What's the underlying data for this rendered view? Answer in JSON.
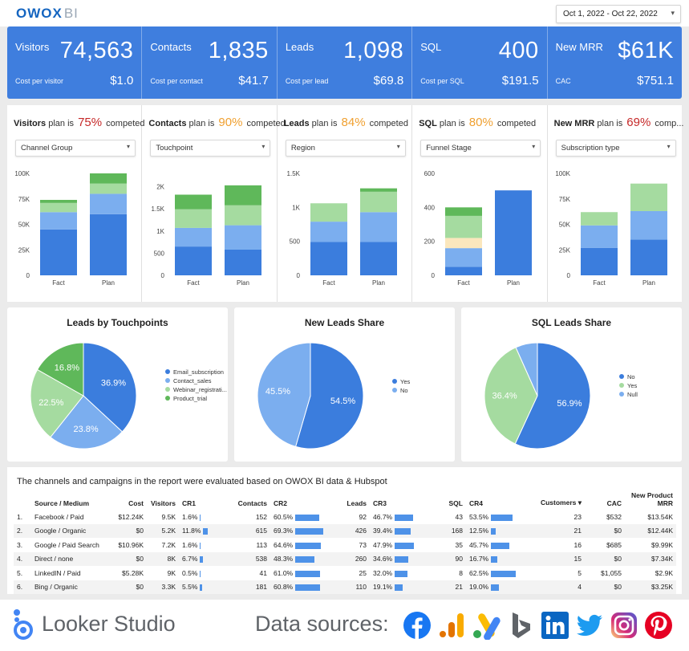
{
  "header": {
    "logo_main": "OWOX",
    "logo_sub": "BI",
    "date_range": "Oct 1, 2022 - Oct 22, 2022"
  },
  "kpis": [
    {
      "label": "Visitors",
      "value": "74,563",
      "sublabel": "Cost per visitor",
      "subvalue": "$1.0"
    },
    {
      "label": "Contacts",
      "value": "1,835",
      "sublabel": "Cost per contact",
      "subvalue": "$41.7"
    },
    {
      "label": "Leads",
      "value": "1,098",
      "sublabel": "Cost per lead",
      "subvalue": "$69.8"
    },
    {
      "label": "SQL",
      "value": "400",
      "sublabel": "Cost per SQL",
      "subvalue": "$191.5"
    },
    {
      "label": "New MRR",
      "value": "$61K",
      "sublabel": "CAC",
      "subvalue": "$751.1"
    }
  ],
  "plans": [
    {
      "metric": "Visitors",
      "mid": "plan is",
      "pct": "75%",
      "tail": "competed",
      "pct_color": "#c62828",
      "dropdown": "Channel Group"
    },
    {
      "metric": "Contacts",
      "mid": "plan is",
      "pct": "90%",
      "tail": "competed",
      "pct_color": "#f0a030",
      "dropdown": "Touchpoint"
    },
    {
      "metric": "Leads",
      "mid": "plan is",
      "pct": "84%",
      "tail": "competed",
      "pct_color": "#f0a030",
      "dropdown": "Region"
    },
    {
      "metric": "SQL",
      "mid": "plan is",
      "pct": "80%",
      "tail": "competed",
      "pct_color": "#f0a030",
      "dropdown": "Funnel Stage"
    },
    {
      "metric": "New MRR",
      "mid": "plan is",
      "pct": "69%",
      "tail": "comp...",
      "pct_color": "#c62828",
      "dropdown": "Subscription type"
    }
  ],
  "chart_data": [
    {
      "type": "bar",
      "title": "Visitors plan",
      "stacked": true,
      "categories": [
        "Fact",
        "Plan"
      ],
      "yticks": [
        "0",
        "25K",
        "50K",
        "75K",
        "100K"
      ],
      "ylim": [
        0,
        100000
      ],
      "series": [
        {
          "name": "s1",
          "color": "#3b7ddd",
          "values": [
            45000,
            60000
          ]
        },
        {
          "name": "s2",
          "color": "#7baeef",
          "values": [
            17000,
            20000
          ]
        },
        {
          "name": "s3",
          "color": "#a5dba0",
          "values": [
            9000,
            10000
          ]
        },
        {
          "name": "s4",
          "color": "#5fb85a",
          "values": [
            3000,
            10000
          ]
        }
      ]
    },
    {
      "type": "bar",
      "title": "Contacts plan",
      "stacked": true,
      "categories": [
        "Fact",
        "Plan"
      ],
      "yticks": [
        "0",
        "500",
        "1K",
        "1.5K",
        "2K"
      ],
      "ylim": [
        0,
        2300
      ],
      "series": [
        {
          "name": "s1",
          "color": "#3b7ddd",
          "values": [
            650,
            580
          ]
        },
        {
          "name": "s2",
          "color": "#7baeef",
          "values": [
            420,
            550
          ]
        },
        {
          "name": "s3",
          "color": "#a5dba0",
          "values": [
            420,
            450
          ]
        },
        {
          "name": "s4",
          "color": "#5fb85a",
          "values": [
            330,
            450
          ]
        }
      ]
    },
    {
      "type": "bar",
      "title": "Leads plan",
      "stacked": true,
      "categories": [
        "Fact",
        "Plan"
      ],
      "yticks": [
        "0",
        "500",
        "1K",
        "1.5K"
      ],
      "ylim": [
        0,
        1500
      ],
      "series": [
        {
          "name": "s1",
          "color": "#3b7ddd",
          "values": [
            490,
            490
          ]
        },
        {
          "name": "s2",
          "color": "#7baeef",
          "values": [
            300,
            440
          ]
        },
        {
          "name": "s3",
          "color": "#a5dba0",
          "values": [
            270,
            300
          ]
        },
        {
          "name": "s4",
          "color": "#5fb85a",
          "values": [
            0,
            50
          ]
        }
      ]
    },
    {
      "type": "bar",
      "title": "SQL plan",
      "stacked": true,
      "categories": [
        "Fact",
        "Plan"
      ],
      "yticks": [
        "0",
        "200",
        "400",
        "600"
      ],
      "ylim": [
        0,
        600
      ],
      "series": [
        {
          "name": "s1",
          "color": "#3b7ddd",
          "values": [
            50,
            500
          ]
        },
        {
          "name": "s2",
          "color": "#7baeef",
          "values": [
            110,
            0
          ]
        },
        {
          "name": "s3",
          "color": "#fbe7bd",
          "values": [
            60,
            0
          ]
        },
        {
          "name": "s4",
          "color": "#a5dba0",
          "values": [
            130,
            0
          ]
        },
        {
          "name": "s5",
          "color": "#5fb85a",
          "values": [
            50,
            0
          ]
        }
      ]
    },
    {
      "type": "bar",
      "title": "New MRR plan",
      "stacked": true,
      "categories": [
        "Fact",
        "Plan"
      ],
      "yticks": [
        "0",
        "25K",
        "50K",
        "75K",
        "100K"
      ],
      "ylim": [
        0,
        100000
      ],
      "series": [
        {
          "name": "s1",
          "color": "#3b7ddd",
          "values": [
            27000,
            35000
          ]
        },
        {
          "name": "s2",
          "color": "#7baeef",
          "values": [
            22000,
            28000
          ]
        },
        {
          "name": "s3",
          "color": "#a5dba0",
          "values": [
            13000,
            27000
          ]
        }
      ]
    },
    {
      "type": "pie",
      "title": "Leads by Touchpoints",
      "slices": [
        {
          "label": "Email_subscription",
          "value": 36.9,
          "text": "36.9%",
          "color": "#3b7ddd"
        },
        {
          "label": "Contact_sales",
          "value": 23.8,
          "text": "23.8%",
          "color": "#7baeef"
        },
        {
          "label": "Webinar_registrati...",
          "value": 22.5,
          "text": "22.5%",
          "color": "#a5dba0"
        },
        {
          "label": "Product_trial",
          "value": 16.8,
          "text": "16.8%",
          "color": "#5fb85a"
        }
      ]
    },
    {
      "type": "pie",
      "title": "New Leads Share",
      "slices": [
        {
          "label": "Yes",
          "value": 54.5,
          "text": "54.5%",
          "color": "#3b7ddd"
        },
        {
          "label": "No",
          "value": 45.5,
          "text": "45.5%",
          "color": "#7baeef"
        }
      ]
    },
    {
      "type": "pie",
      "title": "SQL Leads Share",
      "slices": [
        {
          "label": "No",
          "value": 56.9,
          "text": "56.9%",
          "color": "#3b7ddd"
        },
        {
          "label": "Yes",
          "value": 36.4,
          "text": "36.4%",
          "color": "#a5dba0"
        },
        {
          "label": "Null",
          "value": 6.7,
          "text": "",
          "color": "#7baeef"
        }
      ]
    }
  ],
  "table": {
    "caption": "The channels and campaigns in the report were evaluated based on OWOX BI data & Hubspot",
    "headers": [
      "",
      "Source / Medium",
      "Cost",
      "Visitors",
      "CR1",
      "Contacts",
      "CR2",
      "Leads",
      "CR3",
      "SQL",
      "CR4",
      "Customers ▾",
      "CAC",
      "New Product MRR"
    ],
    "rows": [
      {
        "n": "1.",
        "src": "Facebook / Paid",
        "cost": "$12.24K",
        "visitors": "9.5K",
        "cr1": "1.6%",
        "cr1v": 1.6,
        "contacts": "152",
        "cr2": "60.5%",
        "cr2v": 60.5,
        "leads": "92",
        "cr3": "46.7%",
        "cr3v": 46.7,
        "sql": "43",
        "cr4": "53.5%",
        "cr4v": 53.5,
        "customers": "23",
        "cac": "$532",
        "mrr": "$13.54K"
      },
      {
        "n": "2.",
        "src": "Google / Organic",
        "cost": "$0",
        "visitors": "5.2K",
        "cr1": "11.8%",
        "cr1v": 11.8,
        "contacts": "615",
        "cr2": "69.3%",
        "cr2v": 69.3,
        "leads": "426",
        "cr3": "39.4%",
        "cr3v": 39.4,
        "sql": "168",
        "cr4": "12.5%",
        "cr4v": 12.5,
        "customers": "21",
        "cac": "$0",
        "mrr": "$12.44K"
      },
      {
        "n": "3.",
        "src": "Google / Paid Search",
        "cost": "$10.96K",
        "visitors": "7.2K",
        "cr1": "1.6%",
        "cr1v": 1.6,
        "contacts": "113",
        "cr2": "64.6%",
        "cr2v": 64.6,
        "leads": "73",
        "cr3": "47.9%",
        "cr3v": 47.9,
        "sql": "35",
        "cr4": "45.7%",
        "cr4v": 45.7,
        "customers": "16",
        "cac": "$685",
        "mrr": "$9.99K"
      },
      {
        "n": "4.",
        "src": "Direct / none",
        "cost": "$0",
        "visitors": "8K",
        "cr1": "6.7%",
        "cr1v": 6.7,
        "contacts": "538",
        "cr2": "48.3%",
        "cr2v": 48.3,
        "leads": "260",
        "cr3": "34.6%",
        "cr3v": 34.6,
        "sql": "90",
        "cr4": "16.7%",
        "cr4v": 16.7,
        "customers": "15",
        "cac": "$0",
        "mrr": "$7.34K"
      },
      {
        "n": "5.",
        "src": "LinkedIN / Paid",
        "cost": "$5.28K",
        "visitors": "9K",
        "cr1": "0.5%",
        "cr1v": 0.5,
        "contacts": "41",
        "cr2": "61.0%",
        "cr2v": 61.0,
        "leads": "25",
        "cr3": "32.0%",
        "cr3v": 32.0,
        "sql": "8",
        "cr4": "62.5%",
        "cr4v": 62.5,
        "customers": "5",
        "cac": "$1,055",
        "mrr": "$2.9K"
      },
      {
        "n": "6.",
        "src": "Bing / Organic",
        "cost": "$0",
        "visitors": "3.3K",
        "cr1": "5.5%",
        "cr1v": 5.5,
        "contacts": "181",
        "cr2": "60.8%",
        "cr2v": 60.8,
        "leads": "110",
        "cr3": "19.1%",
        "cr3v": 19.1,
        "sql": "21",
        "cr4": "19.0%",
        "cr4v": 19.0,
        "customers": "4",
        "cac": "$0",
        "mrr": "$3.25K"
      }
    ]
  },
  "footer": {
    "brand": "Looker Studio",
    "sources_label": "Data sources:",
    "sources": [
      "facebook-icon",
      "google-analytics-icon",
      "google-ads-icon",
      "bing-icon",
      "linkedin-icon",
      "twitter-icon",
      "instagram-icon",
      "pinterest-icon"
    ]
  }
}
